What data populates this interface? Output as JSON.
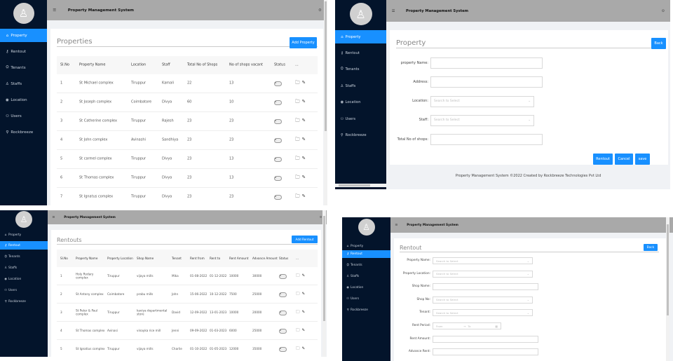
{
  "app_title": "Property Management System",
  "sidebar_items": [
    {
      "label": "Property",
      "icon": "home-icon"
    },
    {
      "label": "Rentout",
      "icon": "key-icon"
    },
    {
      "label": "Tenants",
      "icon": "tenants-icon"
    },
    {
      "label": "Staffs",
      "icon": "user-icon"
    },
    {
      "label": "Location",
      "icon": "location-pin-icon"
    },
    {
      "label": "Users",
      "icon": "users-icon"
    },
    {
      "label": "Rockbreeze",
      "icon": "link-icon"
    }
  ],
  "properties_list": {
    "active_nav": 0,
    "title": "Properties",
    "add_button": "Add Property",
    "columns": [
      "Sl.No",
      "Property Name",
      "Location",
      "Staff",
      "Total No of Shops",
      "No of shops vacant",
      "Status",
      "..."
    ],
    "rows": [
      [
        "1",
        "St Michael complex",
        "Tiruppur",
        "Kamali",
        "22",
        "13"
      ],
      [
        "2",
        "St Joseph complex",
        "Coimbatore",
        "Divya",
        "60",
        "10"
      ],
      [
        "3",
        "St Catherine complex",
        "Tiruppur",
        "Rajesh",
        "23",
        "23"
      ],
      [
        "4",
        "St John complex",
        "Avinashi",
        "Sandhiya",
        "23",
        "23"
      ],
      [
        "5",
        "St carmel complex",
        "Tiruppur",
        "Divya",
        "23",
        "13"
      ],
      [
        "6",
        "St Thomas complex",
        "Tiruppur",
        "Divya",
        "23",
        "13"
      ],
      [
        "7",
        "St Ignatus complex",
        "Tiruppur",
        "Divya",
        "23",
        "23"
      ]
    ]
  },
  "property_form": {
    "active_nav": 0,
    "title": "Property",
    "back_button": "Back",
    "fields": [
      {
        "label": "property Name:",
        "type": "text",
        "value": ""
      },
      {
        "label": "Address:",
        "type": "text",
        "value": ""
      },
      {
        "label": "Location:",
        "type": "select",
        "placeholder": "Search to Select"
      },
      {
        "label": "Staff:",
        "type": "select",
        "placeholder": "Search to Select"
      },
      {
        "label": "Total No of shops:",
        "type": "text",
        "value": ""
      }
    ],
    "buttons": [
      "Rentout",
      "Cancel",
      "save"
    ],
    "footer": "Property Management System ©2022 Created by Rockbreeze Technologies Pvt Ltd"
  },
  "rentouts_list": {
    "active_nav": 1,
    "title": "Rentouts",
    "add_button": "Add Rentout",
    "columns": [
      "Sl.No",
      "Property Name",
      "Property Location",
      "Shop Name",
      "Tenant",
      "Rent from",
      "Rent to",
      "Rent Amount",
      "Advance Amount",
      "Status",
      "..."
    ],
    "rows": [
      [
        "1",
        "Holy Rodary complex",
        "Tiruppur",
        "vijaya mills",
        "Mika",
        "01-08-2022",
        "01-12-2022",
        "10000",
        "30000"
      ],
      [
        "2",
        "St Antony complex",
        "Coimbatore",
        "prabu mills",
        "John",
        "15-06-2022",
        "10-12-2022",
        "7500",
        "25000"
      ],
      [
        "3",
        "St Peter & Paul complex",
        "Tiruppur",
        "kaviya departmental store",
        "David",
        "12-09-2022",
        "13-01-2023",
        "10000",
        "20000"
      ],
      [
        "4",
        "St Thomas complex",
        "Avinasi",
        "vinayka rice mill",
        "Jenni",
        "09-09-2022",
        "01-03-2023",
        "6000",
        "25000"
      ],
      [
        "5",
        "St Ignatius complex",
        "Tiruppur",
        "vijaya mills",
        "Charlie",
        "01-10-2022",
        "01-05-2023",
        "12000",
        "35000"
      ]
    ]
  },
  "rentout_form": {
    "active_nav": 1,
    "title": "Rentout",
    "back_button": "Back",
    "fields": [
      {
        "label": "Property Name:",
        "type": "select",
        "placeholder": "Search to Select"
      },
      {
        "label": "Property Location:",
        "type": "select",
        "placeholder": "Search to Select"
      },
      {
        "label": "Shop Name:",
        "type": "text",
        "value": ""
      },
      {
        "label": "Shop No:",
        "type": "select",
        "placeholder": "Search to Select"
      },
      {
        "label": "Tenant:",
        "type": "select",
        "placeholder": "Search to Select"
      },
      {
        "label": "Rent Period:",
        "type": "daterange",
        "from": "From",
        "to": "To"
      },
      {
        "label": "Rent Amount:",
        "type": "text",
        "value": ""
      },
      {
        "label": "Advance Rent:",
        "type": "text",
        "value": ""
      }
    ]
  },
  "colors": {
    "sidebar": "#03142b",
    "accent": "#1890ff",
    "header": "#a9a9a9"
  }
}
